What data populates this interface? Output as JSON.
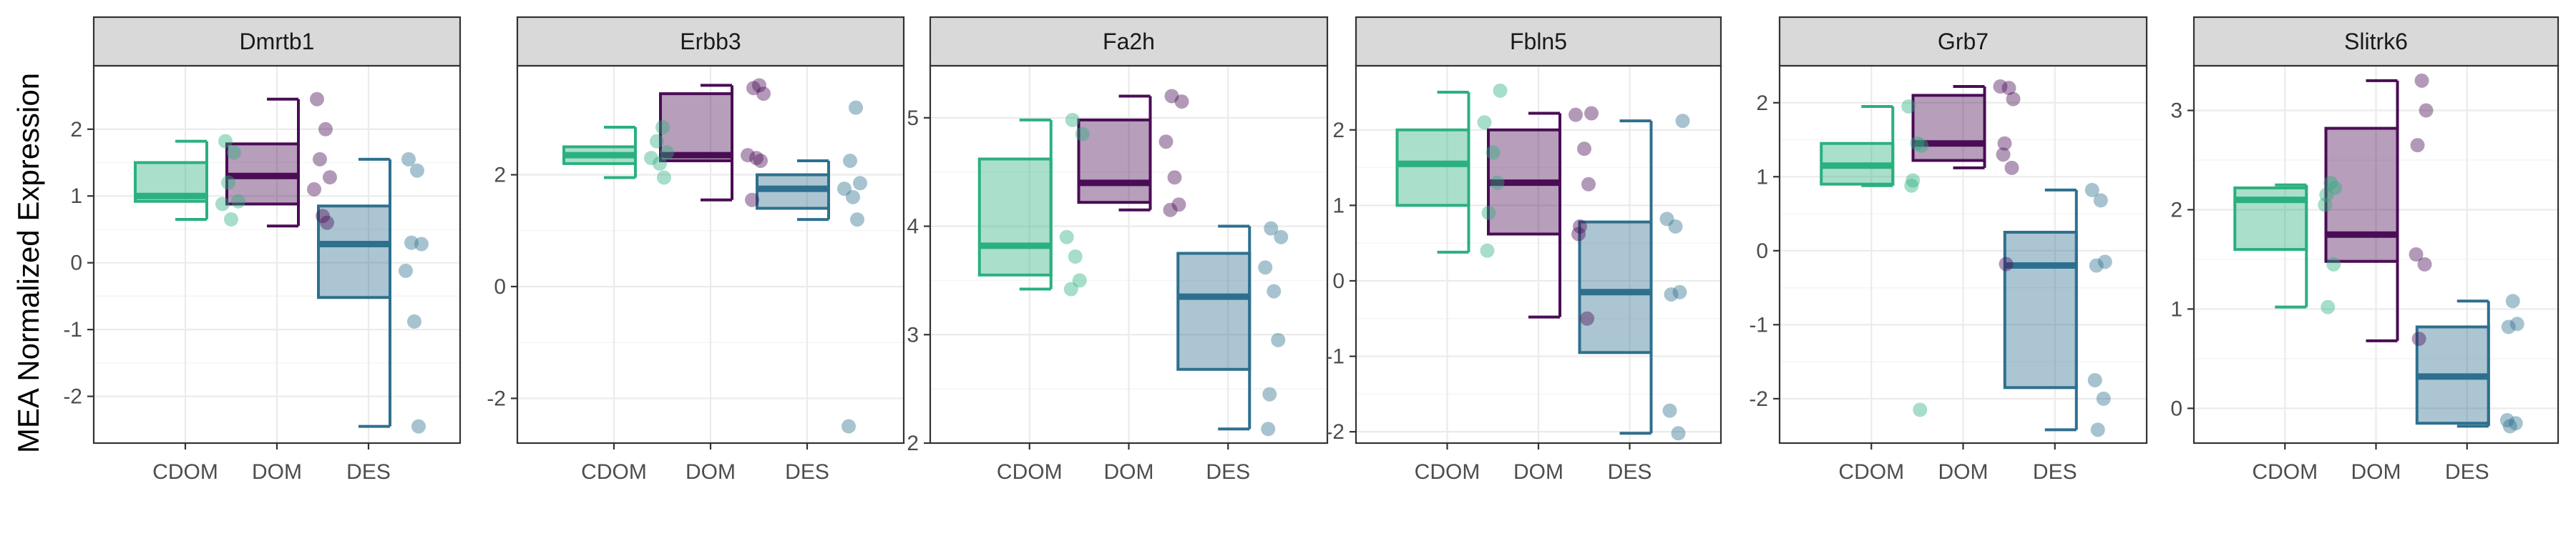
{
  "colors": {
    "CDOM": "#2bb07f",
    "DOM": "#4a0c55",
    "DES": "#2e6f8e",
    "panel_border": "#333333",
    "strip_fill": "#d9d9d9",
    "grid_major": "#ebebeb",
    "grid_minor": "#f5f5f5"
  },
  "chart_data": {
    "type": "box",
    "ylabel": "MEA Normalized Expression",
    "xlabel": "",
    "categories": [
      "CDOM",
      "DOM",
      "DES"
    ],
    "grid": true,
    "facet_scales": "free_y",
    "panels": [
      {
        "title": "Dmrtb1",
        "ylim": [
          -2.7,
          2.95
        ],
        "yticks": [
          -2,
          -1,
          0,
          1,
          2
        ],
        "yticklabels": [
          "-2",
          "-1",
          "0",
          "1",
          "2"
        ],
        "boxes": [
          {
            "group": "CDOM",
            "min": 0.65,
            "q1": 0.92,
            "median": 1.0,
            "q3": 1.5,
            "max": 1.82
          },
          {
            "group": "DOM",
            "min": 0.55,
            "q1": 0.88,
            "median": 1.3,
            "q3": 1.78,
            "max": 2.45
          },
          {
            "group": "DES",
            "min": -2.45,
            "q1": -0.52,
            "median": 0.28,
            "q3": 0.85,
            "max": 1.55
          }
        ],
        "points": {
          "CDOM": [
            1.82,
            1.65,
            1.2,
            0.92,
            0.88,
            0.65
          ],
          "DOM": [
            2.45,
            2.0,
            1.55,
            1.28,
            1.1,
            0.7,
            0.6
          ],
          "DES": [
            1.55,
            1.38,
            0.3,
            0.28,
            -0.12,
            -0.88,
            -2.45
          ]
        }
      },
      {
        "title": "Erbb3",
        "ylim": [
          -2.8,
          3.95
        ],
        "yticks": [
          -2,
          0,
          2
        ],
        "yticklabels": [
          "-2",
          "0",
          "2"
        ],
        "boxes": [
          {
            "group": "CDOM",
            "min": 1.95,
            "q1": 2.2,
            "median": 2.35,
            "q3": 2.5,
            "max": 2.85
          },
          {
            "group": "DOM",
            "min": 1.55,
            "q1": 2.25,
            "median": 2.35,
            "q3": 3.45,
            "max": 3.6
          },
          {
            "group": "DES",
            "min": 1.2,
            "q1": 1.4,
            "median": 1.75,
            "q3": 2.0,
            "max": 2.25
          }
        ],
        "points": {
          "CDOM": [
            2.85,
            2.6,
            2.4,
            2.3,
            2.2,
            1.95
          ],
          "DOM": [
            3.6,
            3.55,
            3.45,
            2.35,
            2.3,
            2.25,
            1.55
          ],
          "DES": [
            3.2,
            2.25,
            1.85,
            1.75,
            1.6,
            1.2,
            -2.5
          ]
        }
      },
      {
        "title": "Fa2h",
        "ylim": [
          2.0,
          5.48
        ],
        "yticks": [
          2,
          3,
          4,
          5
        ],
        "yticklabels": [
          "2",
          "3",
          "4",
          "5"
        ],
        "boxes": [
          {
            "group": "CDOM",
            "min": 3.42,
            "q1": 3.55,
            "median": 3.82,
            "q3": 4.62,
            "max": 4.98
          },
          {
            "group": "DOM",
            "min": 4.15,
            "q1": 4.22,
            "median": 4.4,
            "q3": 4.98,
            "max": 5.2
          },
          {
            "group": "DES",
            "min": 2.13,
            "q1": 2.68,
            "median": 3.35,
            "q3": 3.75,
            "max": 4.0
          }
        ],
        "points": {
          "CDOM": [
            4.98,
            4.85,
            3.9,
            3.72,
            3.5,
            3.42
          ],
          "DOM": [
            5.2,
            5.15,
            4.78,
            4.45,
            4.2,
            4.15
          ],
          "DES": [
            3.98,
            3.9,
            3.62,
            3.4,
            2.95,
            2.45,
            2.13
          ]
        }
      },
      {
        "title": "Fbln5",
        "ylim": [
          -2.15,
          2.85
        ],
        "yticks": [
          -2,
          -1,
          0,
          1,
          2
        ],
        "yticklabels": [
          "-2",
          "-1",
          "0",
          "1",
          "2"
        ],
        "boxes": [
          {
            "group": "CDOM",
            "min": 0.38,
            "q1": 1.0,
            "median": 1.55,
            "q3": 2.0,
            "max": 2.5
          },
          {
            "group": "DOM",
            "min": -0.48,
            "q1": 0.62,
            "median": 1.3,
            "q3": 2.0,
            "max": 2.22
          },
          {
            "group": "DES",
            "min": -2.02,
            "q1": -0.95,
            "median": -0.15,
            "q3": 0.78,
            "max": 2.12
          }
        ],
        "points": {
          "CDOM": [
            2.52,
            2.1,
            1.7,
            1.3,
            0.9,
            0.4
          ],
          "DOM": [
            2.22,
            2.2,
            1.75,
            1.28,
            0.72,
            0.62,
            -0.5
          ],
          "DES": [
            2.12,
            0.82,
            0.72,
            -0.15,
            -0.18,
            -1.72,
            -2.02
          ]
        }
      },
      {
        "title": "Grb7",
        "ylim": [
          -2.6,
          2.5
        ],
        "yticks": [
          -2,
          -1,
          0,
          1,
          2
        ],
        "yticklabels": [
          "-2",
          "-1",
          "0",
          "1",
          "2"
        ],
        "boxes": [
          {
            "group": "CDOM",
            "min": 0.88,
            "q1": 0.9,
            "median": 1.15,
            "q3": 1.45,
            "max": 1.95
          },
          {
            "group": "DOM",
            "min": 1.12,
            "q1": 1.22,
            "median": 1.45,
            "q3": 2.1,
            "max": 2.22
          },
          {
            "group": "DES",
            "min": -2.42,
            "q1": -1.85,
            "median": -0.2,
            "q3": 0.25,
            "max": 0.82
          }
        ],
        "points": {
          "CDOM": [
            1.95,
            1.45,
            1.42,
            0.95,
            0.88,
            -2.15
          ],
          "DOM": [
            2.22,
            2.2,
            2.05,
            1.45,
            1.3,
            1.12,
            -0.18
          ],
          "DES": [
            0.82,
            0.68,
            -0.15,
            -0.2,
            -1.75,
            -2.0,
            -2.42
          ]
        }
      },
      {
        "title": "Slitrk6",
        "ylim": [
          -0.35,
          3.45
        ],
        "yticks": [
          0,
          1,
          2,
          3
        ],
        "yticklabels": [
          "0",
          "1",
          "2",
          "3"
        ],
        "boxes": [
          {
            "group": "CDOM",
            "min": 1.02,
            "q1": 1.6,
            "median": 2.1,
            "q3": 2.22,
            "max": 2.25
          },
          {
            "group": "DOM",
            "min": 0.68,
            "q1": 1.48,
            "median": 1.75,
            "q3": 2.82,
            "max": 3.3
          },
          {
            "group": "DES",
            "min": -0.18,
            "q1": -0.15,
            "median": 0.32,
            "q3": 0.82,
            "max": 1.08
          }
        ],
        "points": {
          "CDOM": [
            2.27,
            2.22,
            2.15,
            2.05,
            1.45,
            1.02
          ],
          "DOM": [
            3.3,
            3.0,
            2.65,
            1.55,
            1.45,
            0.7
          ],
          "DES": [
            1.08,
            0.85,
            0.82,
            -0.12,
            -0.15,
            -0.18
          ]
        }
      }
    ]
  }
}
